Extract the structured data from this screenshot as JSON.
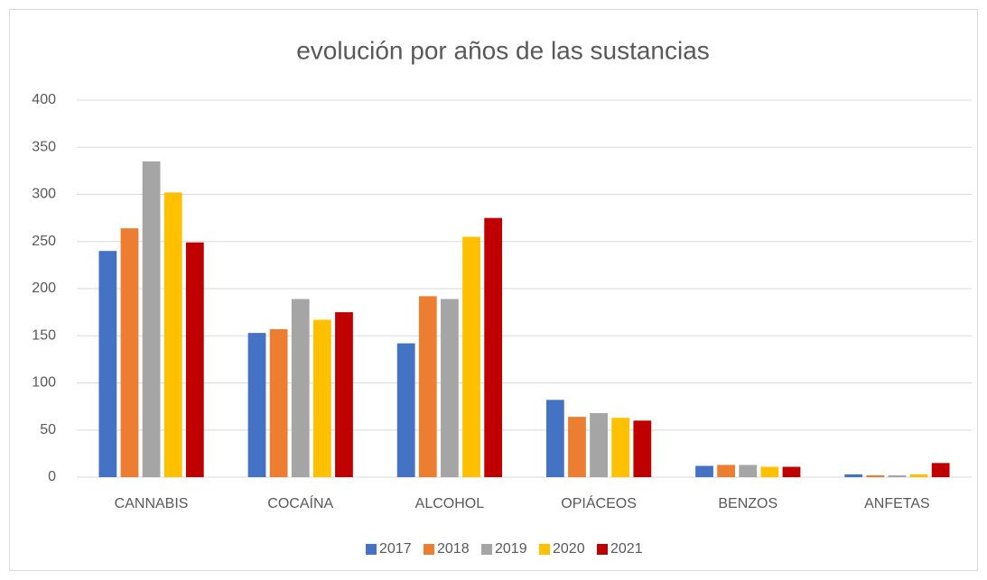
{
  "chart_data": {
    "type": "bar",
    "title": "evolución por años de las sustancias",
    "categories": [
      "CANNABIS",
      "COCAÍNA",
      "ALCOHOL",
      "OPIÁCEOS",
      "BENZOS",
      "ANFETAS"
    ],
    "series": [
      {
        "name": "2017",
        "color": "#4472c4",
        "values": [
          240,
          153,
          142,
          82,
          12,
          3
        ]
      },
      {
        "name": "2018",
        "color": "#ed7d31",
        "values": [
          264,
          157,
          192,
          64,
          13,
          2
        ]
      },
      {
        "name": "2019",
        "color": "#a5a5a5",
        "values": [
          335,
          189,
          189,
          68,
          13,
          2
        ]
      },
      {
        "name": "2020",
        "color": "#ffc000",
        "values": [
          302,
          167,
          255,
          63,
          11,
          3
        ]
      },
      {
        "name": "2021",
        "color": "#c00000",
        "values": [
          249,
          175,
          275,
          60,
          11,
          15
        ]
      }
    ],
    "ylim": [
      0,
      400
    ],
    "yticks": [
      0,
      50,
      100,
      150,
      200,
      250,
      300,
      350,
      400
    ],
    "grid": true,
    "legend": "bottom"
  }
}
